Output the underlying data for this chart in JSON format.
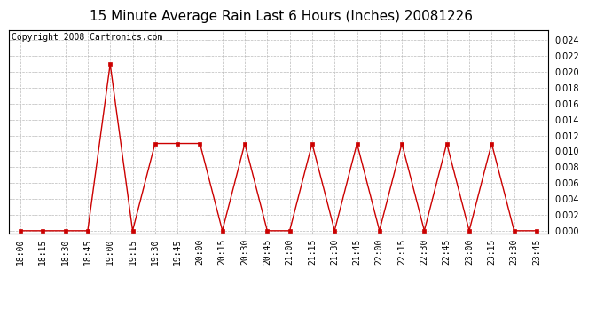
{
  "title": "15 Minute Average Rain Last 6 Hours (Inches) 20081226",
  "copyright_text": "Copyright 2008 Cartronics.com",
  "x_labels": [
    "18:00",
    "18:15",
    "18:30",
    "18:45",
    "19:00",
    "19:15",
    "19:30",
    "19:45",
    "20:00",
    "20:15",
    "20:30",
    "20:45",
    "21:00",
    "21:15",
    "21:30",
    "21:45",
    "22:00",
    "22:15",
    "22:30",
    "22:45",
    "23:00",
    "23:15",
    "23:30",
    "23:45"
  ],
  "y_values": [
    0.0,
    0.0,
    0.0,
    0.0,
    0.021,
    0.0,
    0.011,
    0.011,
    0.011,
    0.0,
    0.011,
    0.0,
    0.0,
    0.011,
    0.0,
    0.011,
    0.0,
    0.011,
    0.0,
    0.011,
    0.0,
    0.011,
    0.0,
    0.0
  ],
  "line_color": "#cc0000",
  "marker": "s",
  "marker_size": 2.5,
  "ylim_min": -0.0003,
  "ylim_max": 0.0253,
  "yticks": [
    0.0,
    0.002,
    0.004,
    0.006,
    0.008,
    0.01,
    0.012,
    0.014,
    0.016,
    0.018,
    0.02,
    0.022,
    0.024
  ],
  "bg_color": "#ffffff",
  "grid_color": "#bbbbbb",
  "title_fontsize": 11,
  "copyright_fontsize": 7,
  "tick_fontsize": 7,
  "figwidth": 6.9,
  "figheight": 3.75,
  "dpi": 100
}
